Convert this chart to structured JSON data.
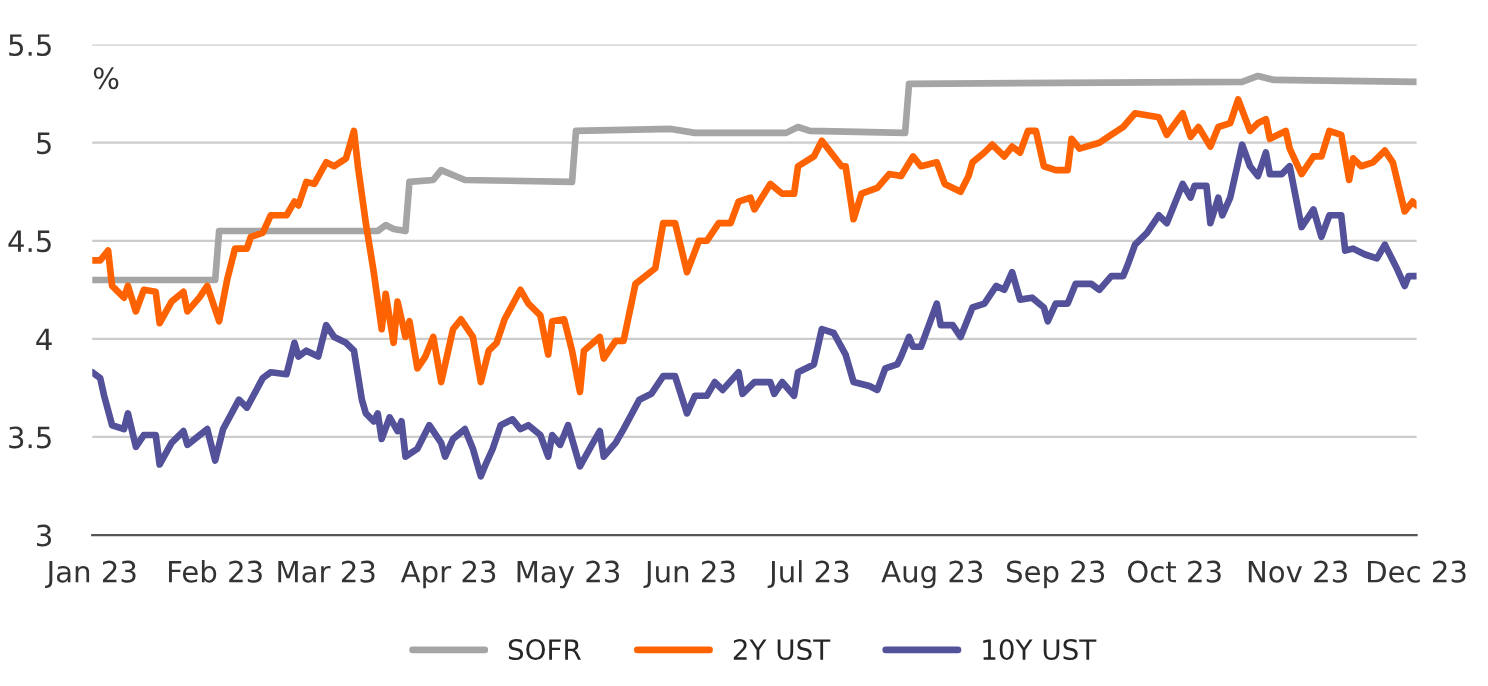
{
  "chart_data": {
    "type": "line",
    "ylabel": "%",
    "xlim": [
      "2023-01-01",
      "2023-12-01"
    ],
    "xticks": [
      {
        "value": "2023-01-01",
        "label": "Jan 23"
      },
      {
        "value": "2023-02-01",
        "label": "Feb 23"
      },
      {
        "value": "2023-03-01",
        "label": "Mar 23"
      },
      {
        "value": "2023-04-01",
        "label": "Apr 23"
      },
      {
        "value": "2023-05-01",
        "label": "May 23"
      },
      {
        "value": "2023-06-01",
        "label": "Jun 23"
      },
      {
        "value": "2023-07-01",
        "label": "Jul 23"
      },
      {
        "value": "2023-08-01",
        "label": "Aug 23"
      },
      {
        "value": "2023-09-01",
        "label": "Sep 23"
      },
      {
        "value": "2023-10-01",
        "label": "Oct 23"
      },
      {
        "value": "2023-11-01",
        "label": "Nov 23"
      },
      {
        "value": "2023-12-01",
        "label": "Dec 23"
      }
    ],
    "ylim": [
      3,
      5.5
    ],
    "yticks": [
      3,
      3.5,
      4,
      4.5,
      5,
      5.5
    ],
    "grid": "y",
    "legend": "bottom",
    "series": [
      {
        "name": "SOFR",
        "color": "#a5a5a5",
        "x": [
          "2023-01-01",
          "2023-02-01",
          "2023-02-02",
          "2023-03-14",
          "2023-03-16",
          "2023-03-18",
          "2023-03-21",
          "2023-03-22",
          "2023-03-28",
          "2023-03-30",
          "2023-04-05",
          "2023-05-02",
          "2023-05-03",
          "2023-05-27",
          "2023-06-02",
          "2023-06-25",
          "2023-06-28",
          "2023-07-01",
          "2023-07-25",
          "2023-07-26",
          "2023-10-18",
          "2023-10-22",
          "2023-10-26",
          "2023-12-01"
        ],
        "values": [
          4.3,
          4.3,
          4.55,
          4.55,
          4.58,
          4.56,
          4.55,
          4.8,
          4.81,
          4.86,
          4.81,
          4.8,
          5.06,
          5.07,
          5.05,
          5.05,
          5.08,
          5.06,
          5.05,
          5.3,
          5.31,
          5.34,
          5.32,
          5.31
        ]
      },
      {
        "name": "2Y UST",
        "color": "#ff6200",
        "x": [
          "2023-01-01",
          "2023-01-03",
          "2023-01-05",
          "2023-01-06",
          "2023-01-09",
          "2023-01-10",
          "2023-01-12",
          "2023-01-14",
          "2023-01-17",
          "2023-01-18",
          "2023-01-21",
          "2023-01-24",
          "2023-01-25",
          "2023-01-28",
          "2023-01-30",
          "2023-02-02",
          "2023-02-04",
          "2023-02-06",
          "2023-02-09",
          "2023-02-10",
          "2023-02-13",
          "2023-02-15",
          "2023-02-19",
          "2023-02-21",
          "2023-02-22",
          "2023-02-24",
          "2023-02-26",
          "2023-03-01",
          "2023-03-03",
          "2023-03-06",
          "2023-03-08",
          "2023-03-09",
          "2023-03-11",
          "2023-03-13",
          "2023-03-15",
          "2023-03-16",
          "2023-03-18",
          "2023-03-19",
          "2023-03-21",
          "2023-03-22",
          "2023-03-24",
          "2023-03-26",
          "2023-03-28",
          "2023-03-30",
          "2023-04-02",
          "2023-04-04",
          "2023-04-07",
          "2023-04-09",
          "2023-04-11",
          "2023-04-13",
          "2023-04-15",
          "2023-04-19",
          "2023-04-21",
          "2023-04-24",
          "2023-04-26",
          "2023-04-27",
          "2023-04-30",
          "2023-05-02",
          "2023-05-04",
          "2023-05-05",
          "2023-05-09",
          "2023-05-10",
          "2023-05-13",
          "2023-05-15",
          "2023-05-18",
          "2023-05-23",
          "2023-05-25",
          "2023-05-28",
          "2023-05-31",
          "2023-06-03",
          "2023-06-05",
          "2023-06-08",
          "2023-06-11",
          "2023-06-13",
          "2023-06-16",
          "2023-06-17",
          "2023-06-21",
          "2023-06-24",
          "2023-06-27",
          "2023-06-28",
          "2023-07-02",
          "2023-07-04",
          "2023-07-09",
          "2023-07-10",
          "2023-07-12",
          "2023-07-14",
          "2023-07-18",
          "2023-07-21",
          "2023-07-24",
          "2023-07-27",
          "2023-07-29",
          "2023-08-02",
          "2023-08-04",
          "2023-08-08",
          "2023-08-10",
          "2023-08-11",
          "2023-08-14",
          "2023-08-16",
          "2023-08-17",
          "2023-08-19",
          "2023-08-21",
          "2023-08-23",
          "2023-08-25",
          "2023-08-27",
          "2023-08-29",
          "2023-09-01",
          "2023-09-04",
          "2023-09-05",
          "2023-09-07",
          "2023-09-12",
          "2023-09-15",
          "2023-09-18",
          "2023-09-21",
          "2023-09-27",
          "2023-09-29",
          "2023-10-03",
          "2023-10-05",
          "2023-10-07",
          "2023-10-10",
          "2023-10-12",
          "2023-10-15",
          "2023-10-17",
          "2023-10-20",
          "2023-10-22",
          "2023-10-24",
          "2023-10-25",
          "2023-10-29",
          "2023-10-30",
          "2023-11-02",
          "2023-11-05",
          "2023-11-07",
          "2023-11-09",
          "2023-11-12",
          "2023-11-14",
          "2023-11-15",
          "2023-11-17",
          "2023-11-20",
          "2023-11-23",
          "2023-11-25",
          "2023-11-28",
          "2023-11-30",
          "2023-12-01"
        ],
        "values": [
          4.4,
          4.4,
          4.45,
          4.27,
          4.21,
          4.27,
          4.14,
          4.25,
          4.24,
          4.08,
          4.19,
          4.24,
          4.14,
          4.21,
          4.27,
          4.09,
          4.3,
          4.46,
          4.46,
          4.52,
          4.54,
          4.63,
          4.63,
          4.7,
          4.68,
          4.8,
          4.79,
          4.9,
          4.88,
          4.92,
          5.06,
          4.88,
          4.59,
          4.34,
          4.05,
          4.23,
          3.98,
          4.19,
          4.01,
          4.09,
          3.85,
          3.91,
          4.01,
          3.78,
          4.05,
          4.1,
          4.01,
          3.78,
          3.94,
          3.98,
          4.1,
          4.25,
          4.18,
          4.12,
          3.92,
          4.09,
          4.1,
          3.94,
          3.73,
          3.94,
          4.01,
          3.9,
          3.99,
          3.99,
          4.28,
          4.36,
          4.59,
          4.59,
          4.34,
          4.5,
          4.5,
          4.59,
          4.59,
          4.7,
          4.72,
          4.66,
          4.79,
          4.74,
          4.74,
          4.88,
          4.93,
          5.01,
          4.88,
          4.88,
          4.61,
          4.74,
          4.77,
          4.84,
          4.83,
          4.93,
          4.88,
          4.9,
          4.79,
          4.75,
          4.83,
          4.9,
          4.95,
          4.99,
          4.97,
          4.93,
          4.98,
          4.95,
          5.06,
          5.06,
          4.88,
          4.86,
          4.86,
          5.02,
          4.97,
          5.0,
          5.04,
          5.08,
          5.15,
          5.13,
          5.04,
          5.15,
          5.03,
          5.08,
          4.98,
          5.08,
          5.1,
          5.22,
          5.06,
          5.1,
          5.12,
          5.02,
          5.06,
          4.97,
          4.84,
          4.93,
          4.93,
          5.06,
          5.04,
          4.81,
          4.92,
          4.88,
          4.9,
          4.96,
          4.9,
          4.65,
          4.7,
          4.68
        ]
      },
      {
        "name": "10Y UST",
        "color": "#525199",
        "x": [
          "2023-01-01",
          "2023-01-03",
          "2023-01-04",
          "2023-01-06",
          "2023-01-09",
          "2023-01-10",
          "2023-01-12",
          "2023-01-14",
          "2023-01-17",
          "2023-01-18",
          "2023-01-21",
          "2023-01-24",
          "2023-01-25",
          "2023-01-30",
          "2023-02-01",
          "2023-02-03",
          "2023-02-07",
          "2023-02-09",
          "2023-02-13",
          "2023-02-15",
          "2023-02-19",
          "2023-02-21",
          "2023-02-22",
          "2023-02-24",
          "2023-02-27",
          "2023-03-01",
          "2023-03-03",
          "2023-03-06",
          "2023-03-08",
          "2023-03-10",
          "2023-03-11",
          "2023-03-13",
          "2023-03-14",
          "2023-03-15",
          "2023-03-17",
          "2023-03-19",
          "2023-03-20",
          "2023-03-21",
          "2023-03-24",
          "2023-03-27",
          "2023-03-30",
          "2023-03-31",
          "2023-04-02",
          "2023-04-05",
          "2023-04-07",
          "2023-04-09",
          "2023-04-10",
          "2023-04-12",
          "2023-04-14",
          "2023-04-17",
          "2023-04-19",
          "2023-04-21",
          "2023-04-24",
          "2023-04-26",
          "2023-04-27",
          "2023-04-29",
          "2023-05-01",
          "2023-05-04",
          "2023-05-07",
          "2023-05-09",
          "2023-05-10",
          "2023-05-13",
          "2023-05-15",
          "2023-05-19",
          "2023-05-22",
          "2023-05-25",
          "2023-05-28",
          "2023-05-31",
          "2023-06-02",
          "2023-06-05",
          "2023-06-07",
          "2023-06-09",
          "2023-06-13",
          "2023-06-14",
          "2023-06-17",
          "2023-06-21",
          "2023-06-22",
          "2023-06-24",
          "2023-06-27",
          "2023-06-28",
          "2023-07-02",
          "2023-07-04",
          "2023-07-07",
          "2023-07-10",
          "2023-07-12",
          "2023-07-16",
          "2023-07-18",
          "2023-07-20",
          "2023-07-23",
          "2023-07-24",
          "2023-07-26",
          "2023-07-27",
          "2023-07-29",
          "2023-08-02",
          "2023-08-03",
          "2023-08-06",
          "2023-08-08",
          "2023-08-11",
          "2023-08-14",
          "2023-08-17",
          "2023-08-19",
          "2023-08-21",
          "2023-08-23",
          "2023-08-26",
          "2023-08-29",
          "2023-08-30",
          "2023-09-01",
          "2023-09-04",
          "2023-09-06",
          "2023-09-10",
          "2023-09-12",
          "2023-09-15",
          "2023-09-18",
          "2023-09-19",
          "2023-09-21",
          "2023-09-24",
          "2023-09-27",
          "2023-09-29",
          "2023-10-03",
          "2023-10-05",
          "2023-10-06",
          "2023-10-09",
          "2023-10-10",
          "2023-10-12",
          "2023-10-13",
          "2023-10-15",
          "2023-10-18",
          "2023-10-20",
          "2023-10-22",
          "2023-10-24",
          "2023-10-25",
          "2023-10-28",
          "2023-10-30",
          "2023-11-02",
          "2023-11-05",
          "2023-11-07",
          "2023-11-09",
          "2023-11-12",
          "2023-11-13",
          "2023-11-15",
          "2023-11-18",
          "2023-11-21",
          "2023-11-23",
          "2023-11-26",
          "2023-11-28",
          "2023-11-29",
          "2023-12-01"
        ],
        "values": [
          3.83,
          3.8,
          3.71,
          3.56,
          3.54,
          3.62,
          3.45,
          3.51,
          3.51,
          3.36,
          3.47,
          3.53,
          3.46,
          3.54,
          3.38,
          3.54,
          3.69,
          3.65,
          3.8,
          3.83,
          3.82,
          3.98,
          3.91,
          3.94,
          3.91,
          4.07,
          4.01,
          3.98,
          3.94,
          3.69,
          3.62,
          3.58,
          3.62,
          3.49,
          3.6,
          3.53,
          3.58,
          3.4,
          3.44,
          3.56,
          3.47,
          3.4,
          3.49,
          3.54,
          3.44,
          3.3,
          3.35,
          3.44,
          3.56,
          3.59,
          3.54,
          3.56,
          3.51,
          3.4,
          3.51,
          3.46,
          3.56,
          3.35,
          3.46,
          3.53,
          3.4,
          3.47,
          3.54,
          3.69,
          3.72,
          3.81,
          3.81,
          3.62,
          3.71,
          3.71,
          3.78,
          3.74,
          3.83,
          3.72,
          3.78,
          3.78,
          3.72,
          3.78,
          3.71,
          3.83,
          3.87,
          4.05,
          4.03,
          3.92,
          3.78,
          3.76,
          3.74,
          3.85,
          3.87,
          3.91,
          4.01,
          3.96,
          3.96,
          4.18,
          4.07,
          4.07,
          4.01,
          4.16,
          4.18,
          4.27,
          4.25,
          4.34,
          4.2,
          4.21,
          4.16,
          4.09,
          4.18,
          4.18,
          4.28,
          4.28,
          4.25,
          4.32,
          4.32,
          4.37,
          4.48,
          4.54,
          4.63,
          4.59,
          4.79,
          4.72,
          4.78,
          4.78,
          4.59,
          4.72,
          4.63,
          4.72,
          4.99,
          4.88,
          4.83,
          4.95,
          4.84,
          4.84,
          4.88,
          4.57,
          4.66,
          4.52,
          4.63,
          4.63,
          4.45,
          4.46,
          4.43,
          4.41,
          4.48,
          4.36,
          4.27,
          4.32,
          4.32
        ]
      }
    ]
  }
}
